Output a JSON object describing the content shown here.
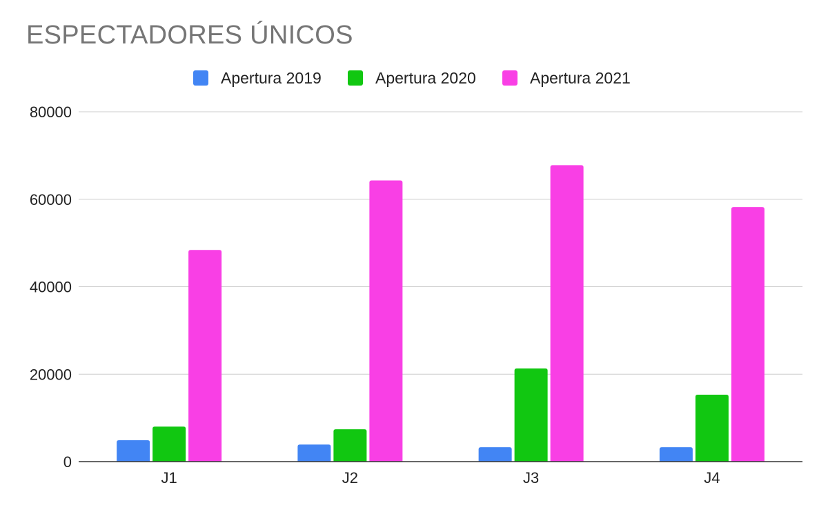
{
  "chart_data": {
    "type": "bar",
    "title": "ESPECTADORES ÚNICOS",
    "xlabel": "",
    "ylabel": "",
    "categories": [
      "J1",
      "J2",
      "J3",
      "J4"
    ],
    "series": [
      {
        "name": "Apertura 2019",
        "color": "#4285f4",
        "values": [
          4900,
          3900,
          3300,
          3300
        ]
      },
      {
        "name": "Apertura 2020",
        "color": "#11c711",
        "values": [
          8000,
          7400,
          21300,
          15300
        ]
      },
      {
        "name": "Apertura 2021",
        "color": "#f93fe5",
        "values": [
          48400,
          64300,
          67800,
          58200
        ]
      }
    ],
    "ylim": [
      0,
      80000
    ],
    "yticks": [
      "0",
      "20000",
      "40000",
      "60000",
      "80000"
    ],
    "grid": true,
    "legend_position": "top"
  }
}
